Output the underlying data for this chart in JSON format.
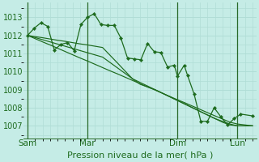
{
  "background_color": "#c5ece6",
  "grid_color": "#b0ddd6",
  "line_color": "#1e6b1e",
  "xlabel": "Pression niveau de la mer( hPa )",
  "xlabel_fontsize": 8,
  "tick_label_color": "#1e6b1e",
  "tick_label_fontsize": 7,
  "ylim": [
    1006.3,
    1013.8
  ],
  "yticks": [
    1007,
    1008,
    1009,
    1010,
    1011,
    1012,
    1013
  ],
  "xtick_labels": [
    "Sam",
    "Mar",
    "Dim",
    "Lun"
  ],
  "xtick_positions": [
    0,
    8,
    20,
    28
  ],
  "vline_positions": [
    0,
    8,
    20,
    28
  ],
  "total_points": 31,
  "jagged_series": [
    1012.0,
    1012.4,
    1012.7,
    1012.5,
    1011.2,
    1011.5,
    1011.6,
    1011.15,
    1012.6,
    1013.0,
    1013.2,
    1012.6,
    1012.55,
    1012.55,
    1011.85,
    1010.75,
    1010.7,
    1010.65,
    1011.55,
    1011.1,
    1011.05,
    1010.25,
    1010.35,
    1009.75,
    1010.35,
    1009.8,
    1008.75,
    1007.25,
    1007.25,
    1008.0,
    1007.5,
    1007.05,
    1007.4,
    1007.65,
    1007.55
  ],
  "smooth_series": [
    [
      1012.0,
      1011.82,
      1011.64,
      1011.47,
      1011.29,
      1011.11,
      1010.93,
      1010.75,
      1010.58,
      1010.4,
      1010.22,
      1010.04,
      1009.87,
      1009.69,
      1009.51,
      1009.33,
      1009.15,
      1008.98,
      1008.8,
      1008.62,
      1008.44,
      1008.27,
      1008.09,
      1007.91,
      1007.73,
      1007.55,
      1007.38,
      1007.2,
      1007.1,
      1007.05,
      1007.0
    ],
    [
      1012.0,
      1011.88,
      1011.76,
      1011.64,
      1011.52,
      1011.4,
      1011.28,
      1011.16,
      1011.04,
      1010.92,
      1010.8,
      1010.5,
      1010.2,
      1009.9,
      1009.6,
      1009.3,
      1009.15,
      1009.0,
      1008.8,
      1008.6,
      1008.4,
      1008.2,
      1008.0,
      1007.8,
      1007.6,
      1007.4,
      1007.25,
      1007.1,
      1007.0,
      1007.0,
      1007.0
    ],
    [
      1012.0,
      1011.93,
      1011.87,
      1011.8,
      1011.73,
      1011.67,
      1011.6,
      1011.53,
      1011.47,
      1011.4,
      1011.33,
      1010.9,
      1010.47,
      1010.03,
      1009.6,
      1009.4,
      1009.2,
      1009.0,
      1008.8,
      1008.6,
      1008.4,
      1008.2,
      1008.0,
      1007.8,
      1007.6,
      1007.4,
      1007.2,
      1007.05,
      1007.0,
      1007.0,
      1007.0
    ]
  ],
  "jagged_n": 35,
  "jagged_x": [
    0,
    0.89,
    1.78,
    2.67,
    3.56,
    4.44,
    5.33,
    6.22,
    7.11,
    8.0,
    8.89,
    9.78,
    10.67,
    11.56,
    12.44,
    13.33,
    14.22,
    15.11,
    16.0,
    16.89,
    17.78,
    18.67,
    19.56,
    20.0,
    20.89,
    21.33,
    22.22,
    23.11,
    24.0,
    24.89,
    25.78,
    26.67,
    27.56,
    28.44,
    30.0
  ]
}
